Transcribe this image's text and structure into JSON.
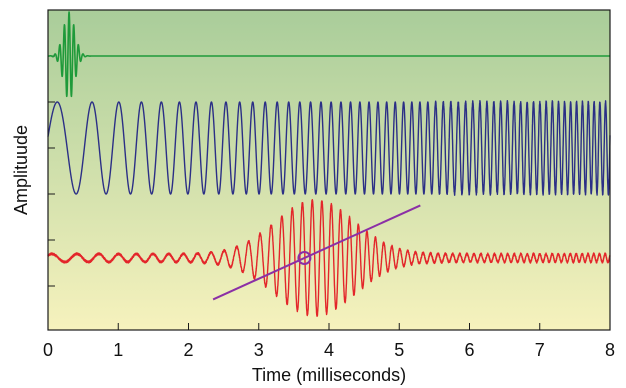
{
  "chart_data": {
    "type": "line",
    "title": "",
    "xlabel": "Time (milliseconds)",
    "ylabel": "Amplituude",
    "xlim": [
      0,
      8
    ],
    "x_ticks": [
      0,
      1,
      2,
      3,
      4,
      5,
      6,
      7,
      8
    ],
    "grid": false,
    "legend": "none",
    "background_gradient": [
      "#a9cd9a",
      "#f6f2bd"
    ],
    "series": [
      {
        "color": "#1f9a3a",
        "kind": "short pulse",
        "x_range": [
          0,
          8
        ],
        "pulse_center": 0.3,
        "pulse_duration": 0.25,
        "baseline_after": 0.5
      },
      {
        "color": "#2b2f86",
        "kind": "chirp (frequency rising with time)",
        "x_range": [
          0,
          8
        ],
        "start_frequency_cycles_per_ms": 1.5,
        "end_frequency_cycles_per_ms": 12.5
      },
      {
        "color": "#e3262a",
        "kind": "chirped wave packet",
        "x_range": [
          0,
          8
        ],
        "packet_center": 3.8,
        "packet_width": 0.8,
        "start_frequency_cycles_per_ms": 2.5,
        "end_frequency_cycles_per_ms": 12.5
      }
    ],
    "annotation_line": {
      "color": "#8b2fa6",
      "x_start": 2.35,
      "x_end": 5.3,
      "circle_at_x": 3.65
    }
  }
}
